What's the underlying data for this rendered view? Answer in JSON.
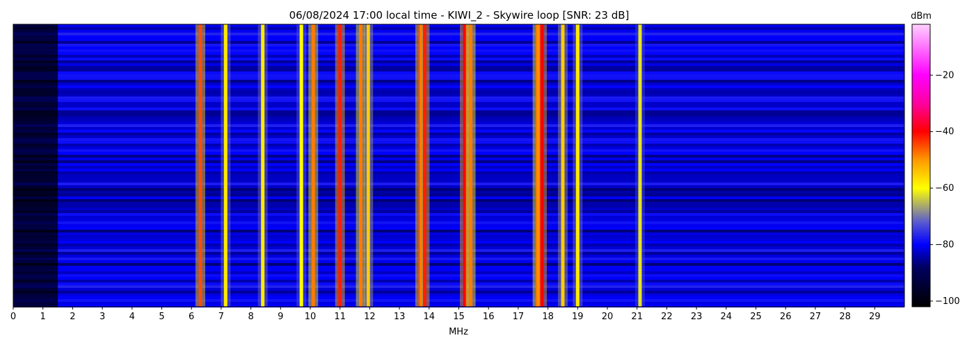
{
  "chart_data": {
    "type": "heatmap",
    "title": "06/08/2024 17:00 local time - KIWI_2 - Skywire loop [SNR: 23 dB]",
    "xlabel": "MHz",
    "ylabel": "",
    "xlim": [
      0,
      30
    ],
    "x_ticks": [
      "0",
      "1",
      "2",
      "3",
      "4",
      "5",
      "6",
      "7",
      "8",
      "9",
      "10",
      "11",
      "12",
      "13",
      "14",
      "15",
      "16",
      "17",
      "18",
      "19",
      "20",
      "21",
      "22",
      "23",
      "24",
      "25",
      "26",
      "27",
      "28",
      "29"
    ],
    "colorbar": {
      "label": "dBm",
      "range": [
        -102,
        -2
      ],
      "ticks": [
        "-100",
        "-80",
        "-60",
        "-40",
        "-20"
      ],
      "tick_values": [
        -100,
        -80,
        -60,
        -40,
        -20
      ],
      "colormap": [
        {
          "value": -102,
          "color": "#000000"
        },
        {
          "value": -88,
          "color": "#000060"
        },
        {
          "value": -80,
          "color": "#0000ff"
        },
        {
          "value": -72,
          "color": "#5a5ad0"
        },
        {
          "value": -60,
          "color": "#ffff00"
        },
        {
          "value": -50,
          "color": "#ff9900"
        },
        {
          "value": -40,
          "color": "#ff0000"
        },
        {
          "value": -30,
          "color": "#ff00a0"
        },
        {
          "value": -20,
          "color": "#ff00ff"
        },
        {
          "value": -2,
          "color": "#ffd0ff"
        }
      ]
    },
    "grid": false,
    "background_level_dbm": -82,
    "signal_bands_mhz": [
      {
        "center": 6.3,
        "level_dbm": -45
      },
      {
        "center": 7.15,
        "level_dbm": -58
      },
      {
        "center": 8.4,
        "level_dbm": -58
      },
      {
        "center": 9.7,
        "level_dbm": -60
      },
      {
        "center": 10.1,
        "level_dbm": -48
      },
      {
        "center": 11.0,
        "level_dbm": -42
      },
      {
        "center": 11.7,
        "level_dbm": -48
      },
      {
        "center": 11.95,
        "level_dbm": -55
      },
      {
        "center": 13.7,
        "level_dbm": -45
      },
      {
        "center": 13.85,
        "level_dbm": -42
      },
      {
        "center": 15.2,
        "level_dbm": -40
      },
      {
        "center": 15.4,
        "level_dbm": -48
      },
      {
        "center": 17.65,
        "level_dbm": -48
      },
      {
        "center": 17.8,
        "level_dbm": -40
      },
      {
        "center": 18.5,
        "level_dbm": -55
      },
      {
        "center": 19.0,
        "level_dbm": -58
      },
      {
        "center": 21.1,
        "level_dbm": -62
      }
    ]
  }
}
